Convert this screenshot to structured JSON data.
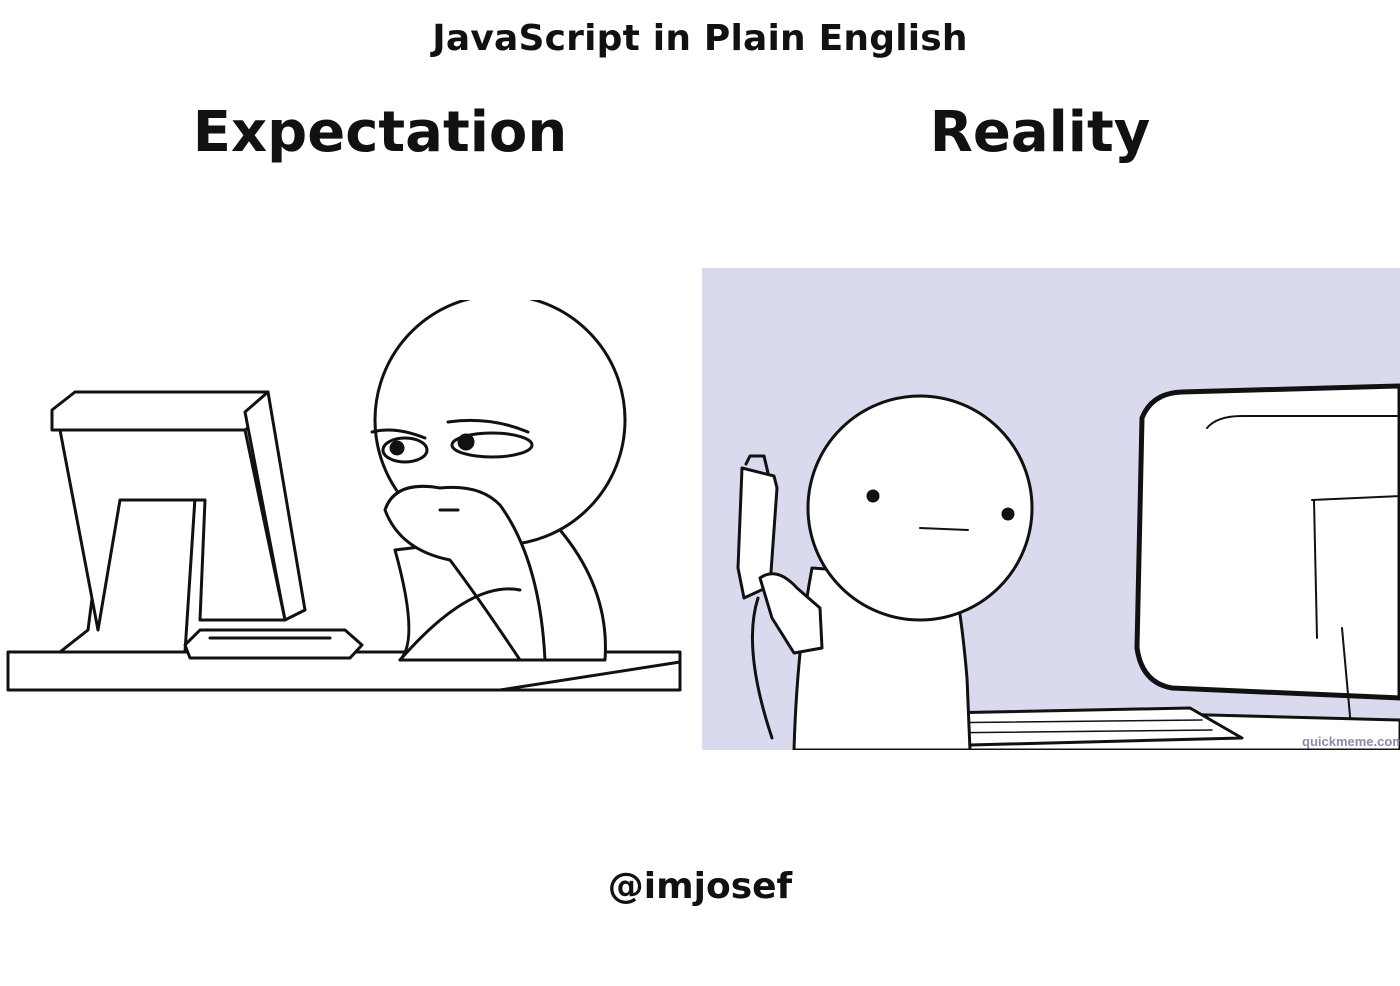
{
  "brand": "JavaScript in Plain English",
  "panels": {
    "left": {
      "heading": "Expectation"
    },
    "right": {
      "heading": "Reality",
      "watermark": "quickmeme.com"
    }
  },
  "handle": "@imjosef",
  "colors": {
    "text": "#111111",
    "background": "#ffffff",
    "reality_background": "#d9daee"
  }
}
